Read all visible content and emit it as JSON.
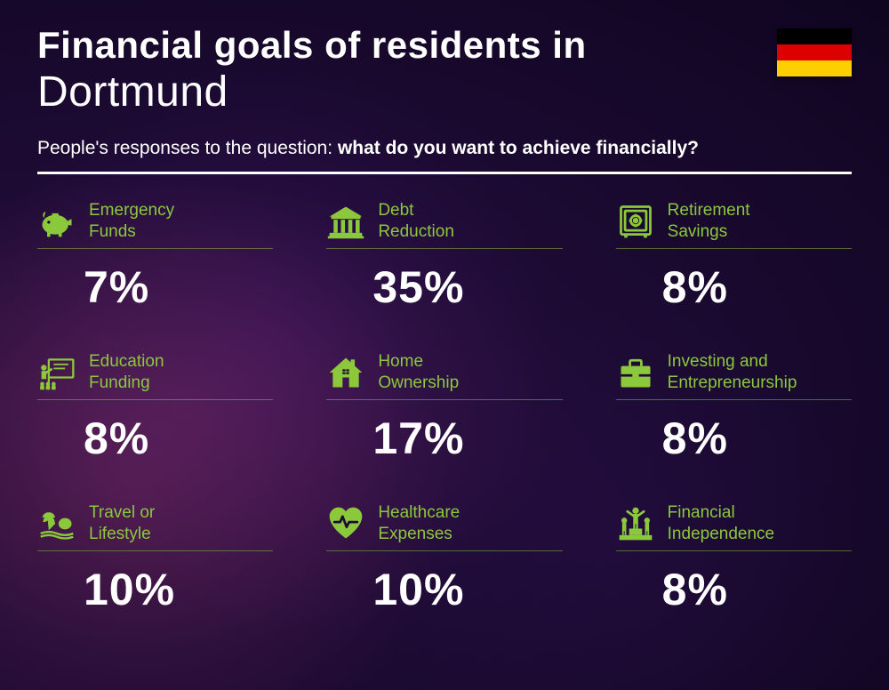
{
  "header": {
    "title_bold": "Financial goals of residents in",
    "title_light": "Dortmund",
    "subtitle_prefix": "People's responses to the question: ",
    "subtitle_bold": "what do you want to achieve financially?"
  },
  "flag": {
    "stripes": [
      "#000000",
      "#dd0000",
      "#ffce00"
    ]
  },
  "accent_color": "#8cc83c",
  "text_color": "#ffffff",
  "items": [
    {
      "icon": "piggy-bank",
      "label_line1": "Emergency",
      "label_line2": "Funds",
      "value": "7%"
    },
    {
      "icon": "bank",
      "label_line1": "Debt",
      "label_line2": "Reduction",
      "value": "35%"
    },
    {
      "icon": "safe",
      "label_line1": "Retirement",
      "label_line2": "Savings",
      "value": "8%"
    },
    {
      "icon": "education",
      "label_line1": "Education",
      "label_line2": "Funding",
      "value": "8%"
    },
    {
      "icon": "house",
      "label_line1": "Home",
      "label_line2": "Ownership",
      "value": "17%"
    },
    {
      "icon": "briefcase",
      "label_line1": "Investing and",
      "label_line2": "Entrepreneurship",
      "value": "8%"
    },
    {
      "icon": "travel",
      "label_line1": "Travel or",
      "label_line2": "Lifestyle",
      "value": "10%"
    },
    {
      "icon": "healthcare",
      "label_line1": "Healthcare",
      "label_line2": "Expenses",
      "value": "10%"
    },
    {
      "icon": "independence",
      "label_line1": "Financial",
      "label_line2": "Independence",
      "value": "8%"
    }
  ]
}
